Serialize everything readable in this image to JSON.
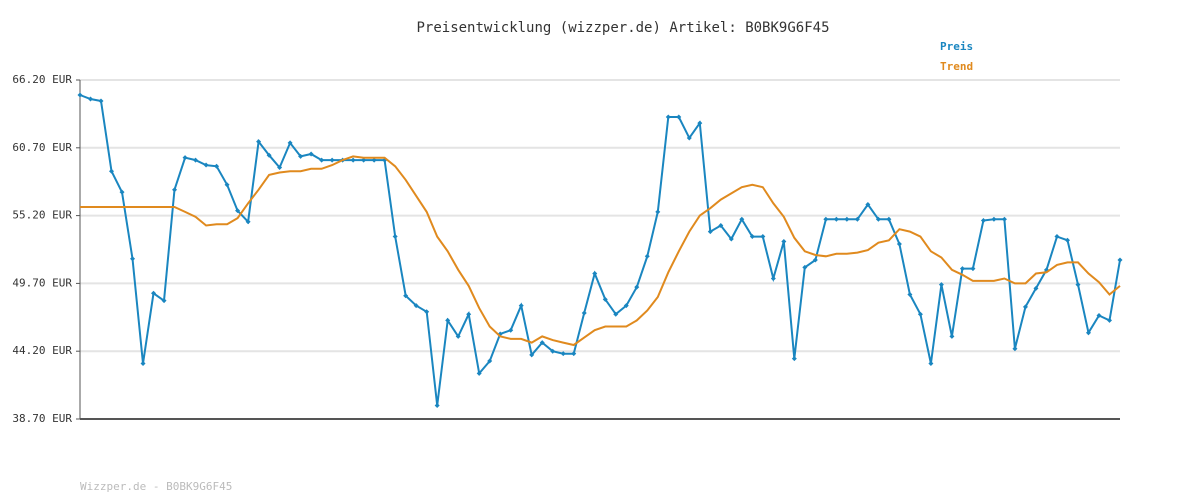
{
  "chart_data": {
    "type": "line",
    "title": "Preisentwicklung (wizzper.de) Artikel: B0BK9G6F45",
    "footer": "Wizzper.de - B0BK9G6F45",
    "categories": [
      null,
      null,
      null,
      null,
      null,
      null,
      null,
      null,
      null,
      null,
      null,
      null,
      null,
      null,
      null,
      null,
      null,
      null,
      null,
      null,
      null,
      null,
      null,
      null,
      null,
      null,
      null,
      null,
      null,
      null,
      null,
      null,
      null,
      null,
      null,
      null,
      null,
      null,
      null,
      null,
      null,
      null,
      null,
      null,
      null,
      null,
      null,
      null,
      null,
      null,
      null,
      null,
      null,
      null,
      null,
      null,
      null,
      null,
      null,
      null,
      null,
      null,
      null,
      null,
      null,
      null,
      null,
      null,
      null,
      null,
      null,
      null,
      null,
      null,
      null,
      null,
      null,
      null,
      null,
      null,
      null,
      null,
      null,
      null,
      null,
      null,
      null,
      null,
      null,
      null,
      null,
      null,
      null,
      null,
      null,
      null,
      null,
      null,
      null,
      null
    ],
    "series": [
      {
        "name": "Preis",
        "color": "#1a86c0",
        "markers": true,
        "values": [
          64.98,
          64.66,
          64.5,
          58.8,
          57.1,
          51.7,
          43.2,
          48.9,
          48.3,
          57.3,
          59.9,
          59.7,
          59.3,
          59.2,
          57.7,
          55.6,
          54.7,
          61.2,
          60.1,
          59.1,
          61.1,
          60.0,
          60.2,
          59.7,
          59.7,
          59.7,
          59.7,
          59.7,
          59.7,
          59.7,
          53.5,
          48.7,
          47.9,
          47.4,
          39.8,
          46.7,
          45.4,
          47.2,
          42.4,
          43.4,
          45.6,
          45.9,
          47.9,
          43.9,
          44.9,
          44.2,
          44.0,
          44.0,
          47.3,
          50.5,
          48.4,
          47.2,
          47.9,
          49.4,
          51.9,
          55.5,
          63.2,
          63.2,
          61.5,
          62.7,
          53.9,
          54.4,
          53.3,
          54.9,
          53.5,
          53.5,
          50.1,
          53.1,
          43.6,
          51.0,
          51.6,
          54.9,
          54.9,
          54.9,
          54.9,
          56.1,
          54.9,
          54.9,
          52.9,
          48.8,
          47.2,
          43.2,
          49.6,
          45.4,
          50.9,
          50.9,
          54.8,
          54.9,
          54.9,
          44.4,
          47.8,
          49.3,
          50.8,
          53.5,
          53.2,
          49.6,
          45.7,
          47.1,
          46.7,
          51.6
        ]
      },
      {
        "name": "Trend",
        "color": "#e08a1e",
        "markers": false,
        "values": [
          55.9,
          55.9,
          55.9,
          55.9,
          55.9,
          55.9,
          55.9,
          55.9,
          55.9,
          55.9,
          55.5,
          55.1,
          54.4,
          54.5,
          54.5,
          55.0,
          56.2,
          57.3,
          58.5,
          58.7,
          58.8,
          58.8,
          59.0,
          59.0,
          59.3,
          59.7,
          60.0,
          59.9,
          59.9,
          59.9,
          59.2,
          58.1,
          56.8,
          55.5,
          53.5,
          52.3,
          50.8,
          49.5,
          47.7,
          46.2,
          45.4,
          45.2,
          45.2,
          44.9,
          45.4,
          45.1,
          44.9,
          44.7,
          45.3,
          45.9,
          46.2,
          46.2,
          46.2,
          46.7,
          47.5,
          48.6,
          50.6,
          52.3,
          53.9,
          55.2,
          55.8,
          56.5,
          57.0,
          57.5,
          57.7,
          57.5,
          56.2,
          55.1,
          53.4,
          52.3,
          52.0,
          51.9,
          52.1,
          52.1,
          52.2,
          52.4,
          53.0,
          53.2,
          54.1,
          53.9,
          53.5,
          52.3,
          51.8,
          50.8,
          50.4,
          49.9,
          49.9,
          49.9,
          50.1,
          49.7,
          49.7,
          50.5,
          50.6,
          51.2,
          51.4,
          51.4,
          50.5,
          49.8,
          48.8,
          49.5
        ]
      }
    ],
    "ylim": [
      38.7,
      66.2
    ],
    "yticks": [
      {
        "value": 38.7,
        "label": "38.70 EUR"
      },
      {
        "value": 44.2,
        "label": "44.20 EUR"
      },
      {
        "value": 49.7,
        "label": "49.70 EUR"
      },
      {
        "value": 55.2,
        "label": "55.20 EUR"
      },
      {
        "value": 60.7,
        "label": "60.70 EUR"
      },
      {
        "value": 66.2,
        "label": "66.20 EUR"
      }
    ],
    "grid": true,
    "legend": "top-right"
  }
}
